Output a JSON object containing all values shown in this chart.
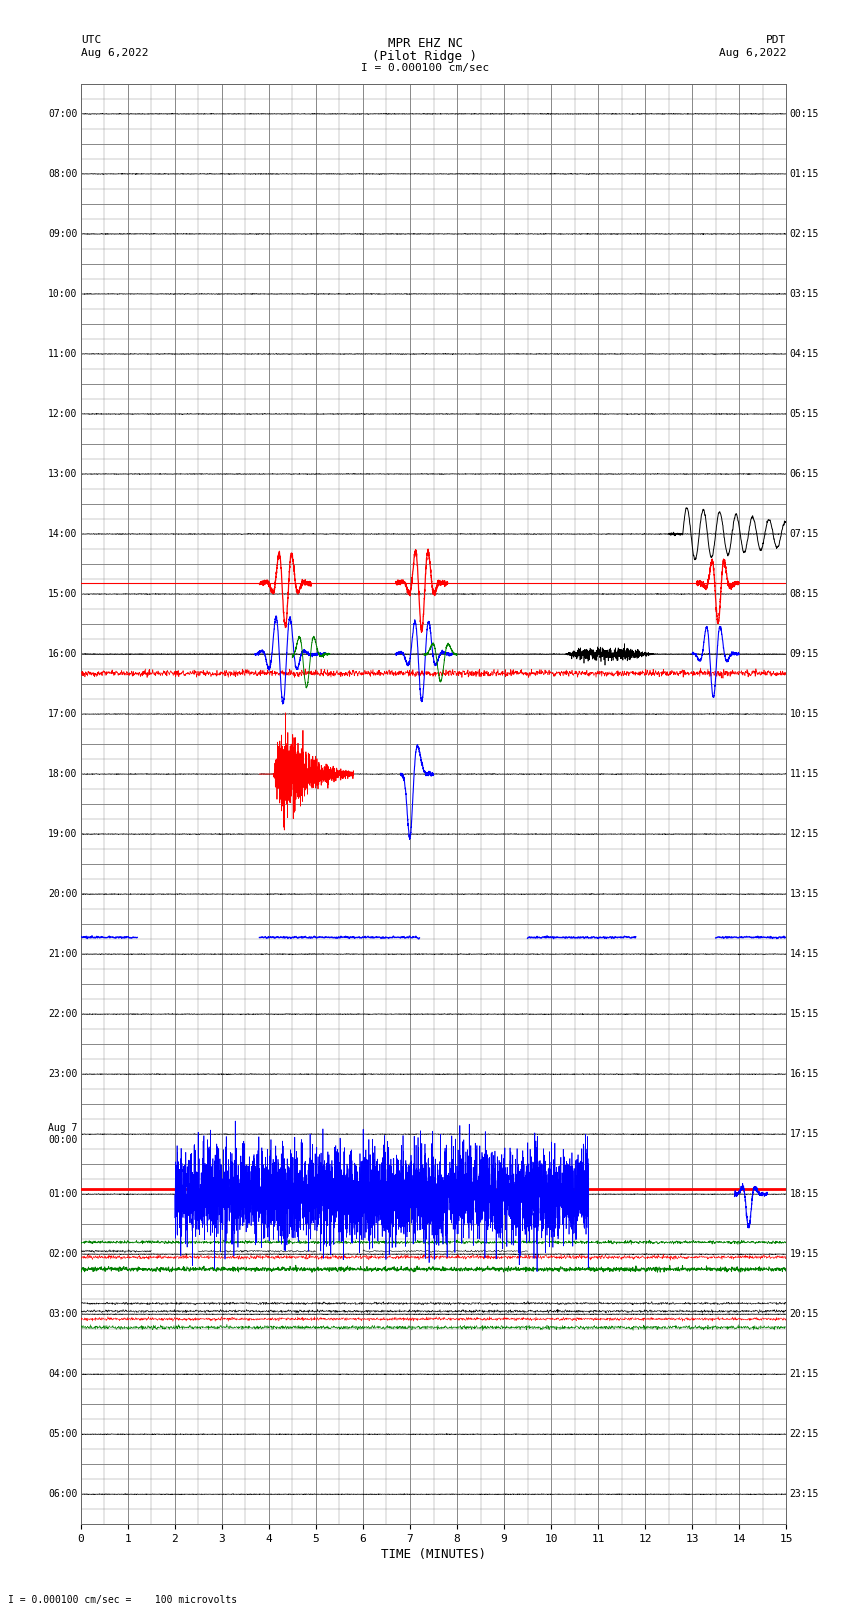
{
  "title_line1": "MPR EHZ NC",
  "title_line2": "(Pilot Ridge )",
  "scale_label": "I = 0.000100 cm/sec",
  "left_header1": "UTC",
  "left_header2": "Aug 6,2022",
  "right_header1": "PDT",
  "right_header2": "Aug 6,2022",
  "xlabel": "TIME (MINUTES)",
  "bottom_note": "I = 0.000100 cm/sec =    100 microvolts",
  "x_ticks": [
    0,
    1,
    2,
    3,
    4,
    5,
    6,
    7,
    8,
    9,
    10,
    11,
    12,
    13,
    14,
    15
  ],
  "utc_times": [
    "07:00",
    "08:00",
    "09:00",
    "10:00",
    "11:00",
    "12:00",
    "13:00",
    "14:00",
    "15:00",
    "16:00",
    "17:00",
    "18:00",
    "19:00",
    "20:00",
    "21:00",
    "22:00",
    "23:00",
    "Aug 7\n00:00",
    "01:00",
    "02:00",
    "03:00",
    "04:00",
    "05:00",
    "06:00"
  ],
  "pdt_times": [
    "00:15",
    "01:15",
    "02:15",
    "03:15",
    "04:15",
    "05:15",
    "06:15",
    "07:15",
    "08:15",
    "09:15",
    "10:15",
    "11:15",
    "12:15",
    "13:15",
    "14:15",
    "15:15",
    "16:15",
    "17:15",
    "18:15",
    "19:15",
    "20:15",
    "21:15",
    "22:15",
    "23:15"
  ],
  "n_rows": 24,
  "bg_color": "#ffffff",
  "grid_color": "#888888",
  "fig_width": 8.5,
  "fig_height": 16.13,
  "dpi": 100
}
